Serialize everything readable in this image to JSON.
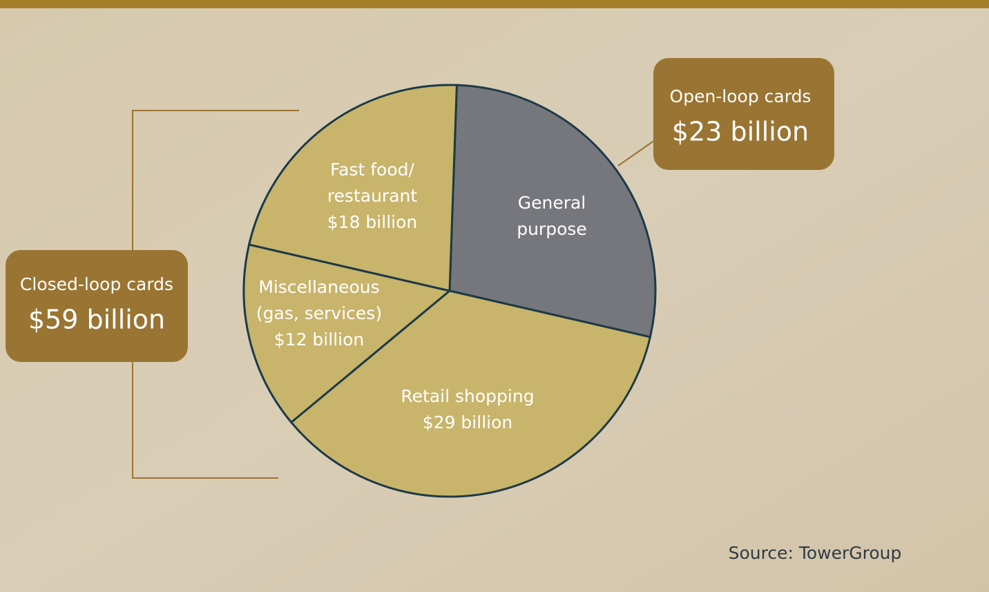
{
  "chart_data": {
    "type": "pie",
    "categories": [
      "General\npurpose",
      "Retail shopping",
      "Miscellaneous\n(gas, services)",
      "Fast food/\nrestaurant"
    ],
    "values": [
      23,
      29,
      12,
      18
    ],
    "value_labels": [
      "$23 billion",
      "$29 billion",
      "$12 billion",
      "$18 billion"
    ],
    "colors": [
      "#76777c",
      "#c8b46b",
      "#c8b46b",
      "#c8b46b"
    ],
    "open_loop": {
      "label": "Open-loop cards"
    },
    "closed_loop": {
      "label": "Closed-loop cards",
      "value_label": "$59 billion"
    },
    "source": "Source: TowerGroup"
  }
}
